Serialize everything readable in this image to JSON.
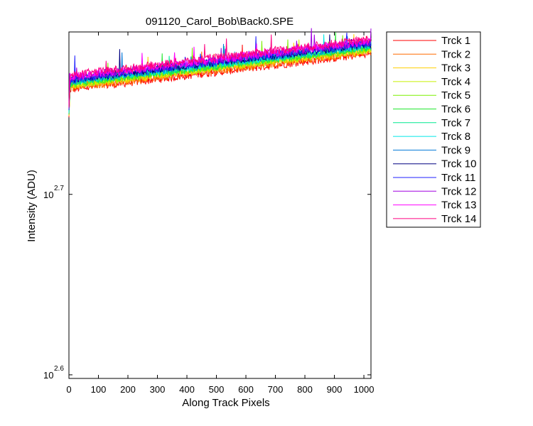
{
  "chart_data": {
    "type": "line",
    "title": "091120_Carol_Bob\\Back0.SPE",
    "xlabel": "Along Track Pixels",
    "ylabel": "Intensity (ADU)",
    "xlim": [
      0,
      1024
    ],
    "ylim_log10": [
      2.598,
      2.79
    ],
    "yscale": "log",
    "grid": false,
    "legend_position": "outside-right",
    "x_ticks": [
      {
        "value": 0,
        "label": "0"
      },
      {
        "value": 100,
        "label": "100"
      },
      {
        "value": 200,
        "label": "200"
      },
      {
        "value": 300,
        "label": "300"
      },
      {
        "value": 400,
        "label": "400"
      },
      {
        "value": 500,
        "label": "500"
      },
      {
        "value": 600,
        "label": "600"
      },
      {
        "value": 700,
        "label": "700"
      },
      {
        "value": 800,
        "label": "800"
      },
      {
        "value": 900,
        "label": "900"
      },
      {
        "value": 1000,
        "label": "1000"
      }
    ],
    "y_ticks": [
      {
        "log10": 2.6,
        "base": "10",
        "exponent": "2.6"
      },
      {
        "log10": 2.7,
        "base": "10",
        "exponent": "2.7"
      }
    ],
    "series": [
      {
        "name": "Trck 1",
        "color": "#ff0000",
        "y_log10_start": 2.758,
        "y_log10_end": 2.778
      },
      {
        "name": "Trck 2",
        "color": "#ff6a00",
        "y_log10_start": 2.759,
        "y_log10_end": 2.779
      },
      {
        "name": "Trck 3",
        "color": "#ffd000",
        "y_log10_start": 2.76,
        "y_log10_end": 2.78
      },
      {
        "name": "Trck 4",
        "color": "#c8f000",
        "y_log10_start": 2.7605,
        "y_log10_end": 2.7805
      },
      {
        "name": "Trck 5",
        "color": "#7cf000",
        "y_log10_start": 2.761,
        "y_log10_end": 2.781
      },
      {
        "name": "Trck 6",
        "color": "#22e830",
        "y_log10_start": 2.7615,
        "y_log10_end": 2.7815
      },
      {
        "name": "Trck 7",
        "color": "#00e890",
        "y_log10_start": 2.762,
        "y_log10_end": 2.782
      },
      {
        "name": "Trck 8",
        "color": "#00e8e8",
        "y_log10_start": 2.7625,
        "y_log10_end": 2.7825
      },
      {
        "name": "Trck 9",
        "color": "#0077d8",
        "y_log10_start": 2.763,
        "y_log10_end": 2.783
      },
      {
        "name": "Trck 10",
        "color": "#000080",
        "y_log10_start": 2.7635,
        "y_log10_end": 2.7835
      },
      {
        "name": "Trck 11",
        "color": "#2020ff",
        "y_log10_start": 2.764,
        "y_log10_end": 2.784
      },
      {
        "name": "Trck 12",
        "color": "#a000e0",
        "y_log10_start": 2.7645,
        "y_log10_end": 2.7845
      },
      {
        "name": "Trck 13",
        "color": "#ff00ff",
        "y_log10_start": 2.765,
        "y_log10_end": 2.785
      },
      {
        "name": "Trck 14",
        "color": "#ff0080",
        "y_log10_start": 2.766,
        "y_log10_end": 2.786
      }
    ]
  }
}
